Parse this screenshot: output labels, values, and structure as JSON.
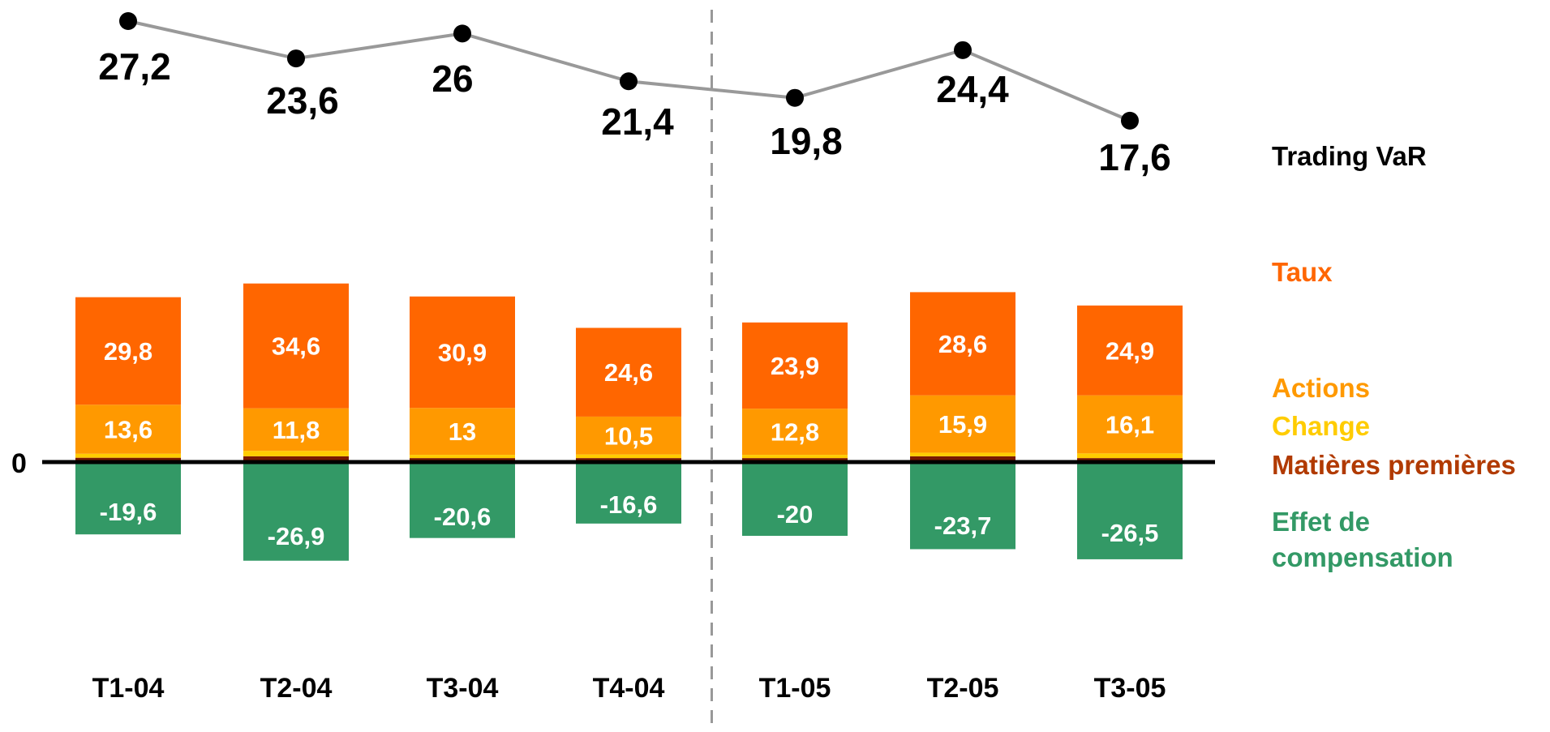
{
  "chart_data": {
    "type": "bar",
    "categories": [
      "T1-04",
      "T2-04",
      "T3-04",
      "T4-04",
      "T1-05",
      "T2-05",
      "T3-05"
    ],
    "zero_label": "0",
    "divider_after_index": 3,
    "series": [
      {
        "key": "matieres",
        "name": "Matières premières",
        "color": "#7a1a00",
        "label_color": "#b13a00",
        "values": [
          1.2,
          1.6,
          1.1,
          1.1,
          1.1,
          1.6,
          1.1
        ],
        "show_values": false
      },
      {
        "key": "change",
        "name": "Change",
        "color": "#ffcc00",
        "label_color": "#ffcc00",
        "values": [
          1.1,
          1.5,
          0.9,
          1.0,
          0.9,
          1.0,
          1.3
        ],
        "show_values": false
      },
      {
        "key": "actions",
        "name": "Actions",
        "color": "#ff9900",
        "label_color": "#ff9900",
        "values": [
          13.6,
          11.8,
          13,
          10.5,
          12.8,
          15.9,
          16.1
        ],
        "value_labels": [
          "13,6",
          "11,8",
          "13",
          "10,5",
          "12,8",
          "15,9",
          "16,1"
        ],
        "show_values": true
      },
      {
        "key": "taux",
        "name": "Taux",
        "color": "#ff6600",
        "label_color": "#ff6600",
        "values": [
          29.8,
          34.6,
          30.9,
          24.6,
          23.9,
          28.6,
          24.9
        ],
        "value_labels": [
          "29,8",
          "34,6",
          "30,9",
          "24,6",
          "23,9",
          "28,6",
          "24,9"
        ],
        "show_values": true
      },
      {
        "key": "compensation",
        "name": "Effet de compensation",
        "name_lines": [
          "Effet de",
          "compensation"
        ],
        "color": "#339966",
        "label_color": "#339966",
        "values": [
          -19.6,
          -26.9,
          -20.6,
          -16.6,
          -20,
          -23.7,
          -26.5
        ],
        "value_labels": [
          "-19,6",
          "-26,9",
          "-20,6",
          "-16,6",
          "-20",
          "-23,7",
          "-26,5"
        ],
        "show_values": true
      }
    ],
    "line": {
      "name": "Trading VaR",
      "color": "#999999",
      "marker_color": "#000000",
      "label_color": "#000000",
      "values": [
        27.2,
        23.6,
        26,
        21.4,
        19.8,
        24.4,
        17.6
      ],
      "value_labels": [
        "27,2",
        "23,6",
        "26",
        "21,4",
        "19,8",
        "24,4",
        "17,6"
      ]
    },
    "grid": false,
    "legend_position": "right"
  }
}
